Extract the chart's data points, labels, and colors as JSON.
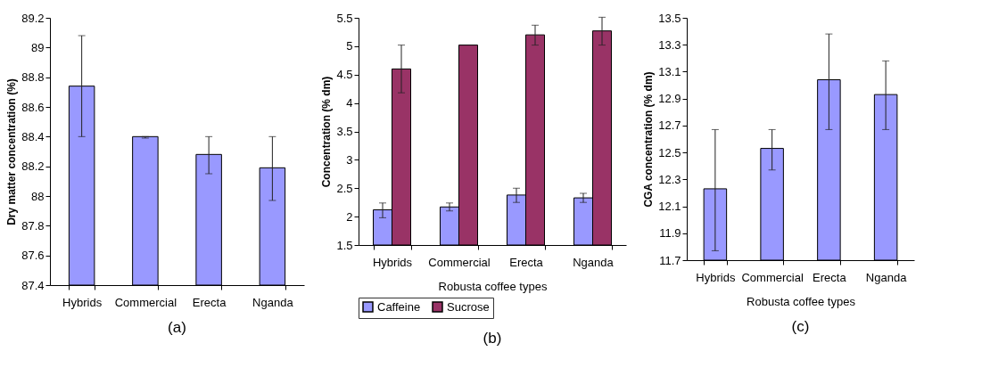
{
  "chart_data": [
    {
      "type": "bar",
      "ylabel": "Dry matter concentration  (%)",
      "categories": [
        "Hybrids",
        "Commercial",
        "Erecta",
        "Nganda"
      ],
      "values": [
        88.74,
        88.4,
        88.28,
        88.19
      ],
      "color": "#9999ff",
      "errors": [
        [
          88.4,
          89.08
        ],
        [
          88.39,
          88.4
        ],
        [
          88.15,
          88.4
        ],
        [
          87.97,
          88.4
        ]
      ],
      "ylim": [
        87.4,
        89.2
      ],
      "yticks": [
        87.4,
        87.6,
        87.8,
        88,
        88.2,
        88.4,
        88.6,
        88.8,
        89,
        89.2
      ],
      "grid": false,
      "annotations": [
        "(a)"
      ]
    },
    {
      "type": "bar",
      "ylabel": "Concentration  (%  dm)",
      "xlabel": "Robusta coffee types",
      "categories": [
        "Hybrids",
        "Commercial",
        "Erecta",
        "Nganda"
      ],
      "series": [
        {
          "name": "Caffeine",
          "color": "#9999ff",
          "values": [
            2.12,
            2.17,
            2.38,
            2.33
          ],
          "errors": [
            [
              1.98,
              2.24
            ],
            [
              2.1,
              2.24
            ],
            [
              2.25,
              2.5
            ],
            [
              2.25,
              2.41
            ]
          ]
        },
        {
          "name": "Sucrose",
          "color": "#993366",
          "values": [
            4.6,
            5.02,
            5.2,
            5.27
          ],
          "errors": [
            [
              4.18,
              5.02
            ],
            null,
            [
              5.02,
              5.37
            ],
            [
              5.02,
              5.51
            ]
          ]
        }
      ],
      "ylim": [
        1.5,
        5.5
      ],
      "yticks": [
        1.5,
        2,
        2.5,
        3,
        3.5,
        4,
        4.5,
        5,
        5.5
      ],
      "grid": false,
      "legend": "bottom",
      "annotations": [
        "(b)"
      ]
    },
    {
      "type": "bar",
      "ylabel": "CGA concentration  (%  dm)",
      "xlabel": "Robusta coffee types",
      "categories": [
        "Hybrids",
        "Commercial",
        "Erecta",
        "Nganda"
      ],
      "values": [
        12.23,
        12.53,
        13.04,
        12.93
      ],
      "color": "#9999ff",
      "errors": [
        [
          11.77,
          12.67
        ],
        [
          12.37,
          12.67
        ],
        [
          12.67,
          13.38
        ],
        [
          12.67,
          13.18
        ]
      ],
      "ylim": [
        11.7,
        13.5
      ],
      "yticks": [
        11.7,
        11.9,
        12.1,
        12.3,
        12.5,
        12.7,
        12.9,
        13.1,
        13.3,
        13.5
      ],
      "grid": false,
      "annotations": [
        "(c)"
      ]
    }
  ]
}
